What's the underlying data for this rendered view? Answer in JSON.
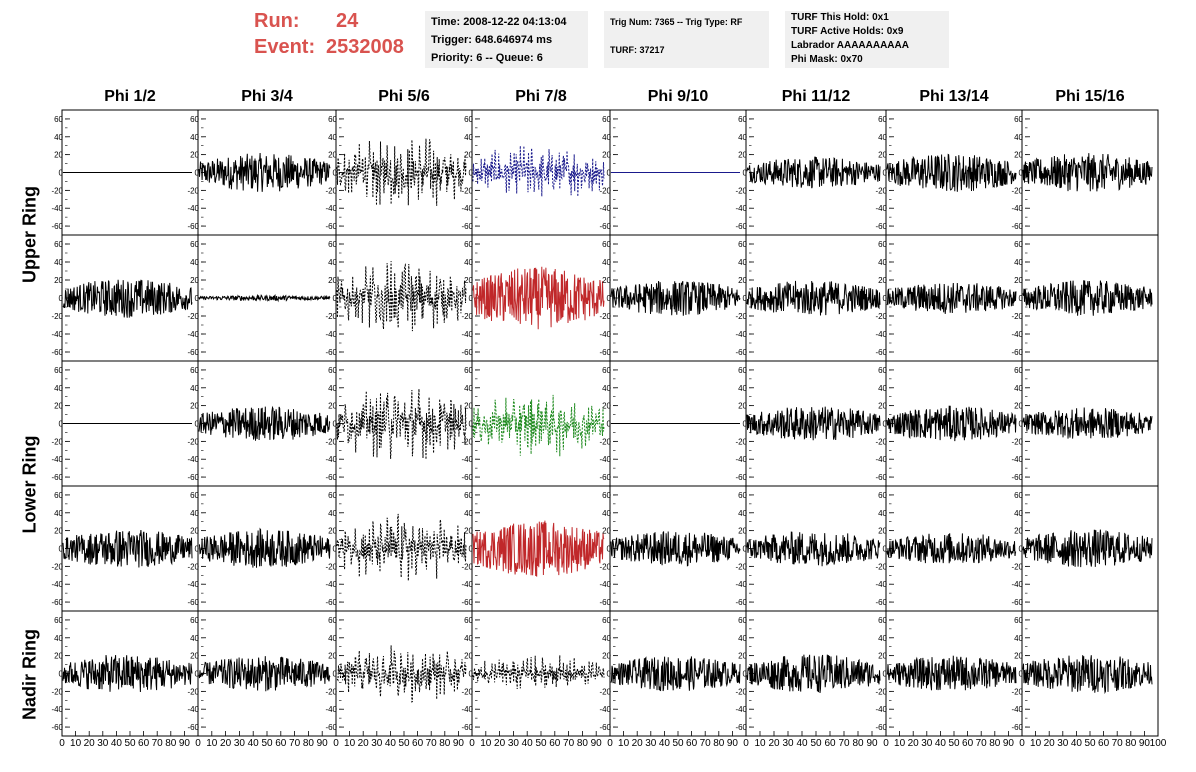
{
  "run": {
    "run_label": "Run:",
    "run_value": "24",
    "event_label": "Event:",
    "event_value": "2532008"
  },
  "info": {
    "time": "Time: 2008-12-22 04:13:04",
    "trigger": "Trigger: 648.646974 ms",
    "priority": "Priority: 6 -- Queue: 6",
    "trig_num": "Trig Num: 7365 -- Trig Type: RF",
    "turf": "TURF: 37217",
    "turf_hold": "TURF This Hold: 0x1",
    "turf_active": "TURF Active Holds: 0x9",
    "labrador": "Labrador AAAAAAAAAA",
    "phi_mask": "Phi Mask: 0x70"
  },
  "chart_data": {
    "type": "line",
    "columns": [
      "Phi 1/2",
      "Phi 3/4",
      "Phi 5/6",
      "Phi 7/8",
      "Phi 9/10",
      "Phi 11/12",
      "Phi 13/14",
      "Phi 15/16"
    ],
    "ring_labels": [
      "Upper Ring",
      "Lower Ring",
      "Nadir Ring"
    ],
    "ylim": [
      -70,
      70
    ],
    "yticks": [
      -60,
      -40,
      -20,
      0,
      20,
      40,
      60
    ],
    "xlim": [
      0,
      100
    ],
    "xticks": [
      0,
      10,
      20,
      30,
      40,
      50,
      60,
      70,
      80,
      90,
      100
    ],
    "xtick_labels_bottom": "0 10 20 30 40 50 60 70 80 90 10",
    "last_xtick_label": "100",
    "trace_colors": {
      "black": "#000000",
      "blue": "#1a1a8c",
      "red": "#c0282a",
      "green": "#1e8a1e"
    },
    "panels": [
      [
        {
          "amp": 0,
          "style": "flat",
          "color": "black"
        },
        {
          "amp": 22,
          "style": "solid",
          "color": "black"
        },
        {
          "amp": 45,
          "style": "dashed",
          "color": "black"
        },
        {
          "amp": 35,
          "style": "dashed",
          "color": "blue"
        },
        {
          "amp": 0,
          "style": "flat",
          "color": "blue"
        },
        {
          "amp": 18,
          "style": "solid",
          "color": "black"
        },
        {
          "amp": 22,
          "style": "solid",
          "color": "black"
        },
        {
          "amp": 22,
          "style": "solid",
          "color": "black"
        }
      ],
      [
        {
          "amp": 22,
          "style": "solid",
          "color": "black"
        },
        {
          "amp": 3,
          "style": "solid",
          "color": "black"
        },
        {
          "amp": 45,
          "style": "dashed",
          "color": "black"
        },
        {
          "amp": 35,
          "style": "solid",
          "color": "red"
        },
        {
          "amp": 20,
          "style": "solid",
          "color": "black"
        },
        {
          "amp": 20,
          "style": "solid",
          "color": "black"
        },
        {
          "amp": 18,
          "style": "solid",
          "color": "black"
        },
        {
          "amp": 20,
          "style": "solid",
          "color": "black"
        }
      ],
      [
        {
          "amp": 0,
          "style": "flat",
          "color": "black"
        },
        {
          "amp": 20,
          "style": "solid",
          "color": "black"
        },
        {
          "amp": 45,
          "style": "dashed",
          "color": "black"
        },
        {
          "amp": 40,
          "style": "dashed",
          "color": "green"
        },
        {
          "amp": 0,
          "style": "flat",
          "color": "black"
        },
        {
          "amp": 20,
          "style": "solid",
          "color": "black"
        },
        {
          "amp": 20,
          "style": "solid",
          "color": "black"
        },
        {
          "amp": 18,
          "style": "solid",
          "color": "black"
        }
      ],
      [
        {
          "amp": 22,
          "style": "solid",
          "color": "black"
        },
        {
          "amp": 22,
          "style": "solid",
          "color": "black"
        },
        {
          "amp": 42,
          "style": "dashed",
          "color": "black"
        },
        {
          "amp": 32,
          "style": "solid",
          "color": "red"
        },
        {
          "amp": 20,
          "style": "solid",
          "color": "black"
        },
        {
          "amp": 20,
          "style": "solid",
          "color": "black"
        },
        {
          "amp": 18,
          "style": "solid",
          "color": "black"
        },
        {
          "amp": 22,
          "style": "solid",
          "color": "black"
        }
      ],
      [
        {
          "amp": 22,
          "style": "solid",
          "color": "black"
        },
        {
          "amp": 20,
          "style": "solid",
          "color": "black"
        },
        {
          "amp": 35,
          "style": "dashed",
          "color": "black"
        },
        {
          "amp": 22,
          "style": "dashed",
          "color": "black"
        },
        {
          "amp": 20,
          "style": "solid",
          "color": "black"
        },
        {
          "amp": 22,
          "style": "solid",
          "color": "black"
        },
        {
          "amp": 20,
          "style": "solid",
          "color": "black"
        },
        {
          "amp": 22,
          "style": "solid",
          "color": "black"
        }
      ]
    ]
  }
}
